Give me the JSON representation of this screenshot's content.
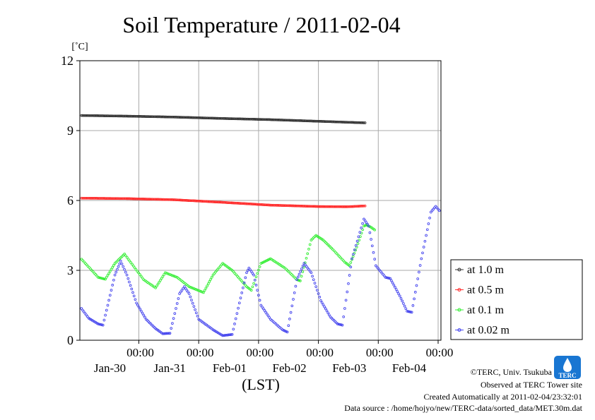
{
  "chart_data": {
    "type": "line",
    "title": "Soil Temperature / 2011-02-04",
    "ylabel": "[˚C]",
    "xlabel": "(LST)",
    "ylim": [
      0,
      12
    ],
    "yticks": [
      "0",
      "3",
      "6",
      "9",
      "12"
    ],
    "xlim_days": [
      0,
      6
    ],
    "xticks": [
      {
        "time": "00:00",
        "date": "Jan-30"
      },
      {
        "time": "00:00",
        "date": "Jan-31"
      },
      {
        "time": "00:00",
        "date": "Feb-01"
      },
      {
        "time": "00:00",
        "date": "Feb-02"
      },
      {
        "time": "00:00",
        "date": "Feb-03"
      },
      {
        "time": "00:00",
        "date": "Feb-04"
      }
    ],
    "grid": true,
    "legend_position": "right",
    "series": [
      {
        "name": "at 1.0 m",
        "color": "#333333",
        "points": [
          [
            0,
            9.65
          ],
          [
            1,
            9.62
          ],
          [
            2,
            9.58
          ],
          [
            3,
            9.52
          ],
          [
            4,
            9.47
          ],
          [
            5,
            9.4
          ],
          [
            6,
            9.33
          ]
        ]
      },
      {
        "name": "at 0.5 m",
        "color": "#ff2a2a",
        "points": [
          [
            0,
            6.1
          ],
          [
            1,
            6.08
          ],
          [
            2,
            6.03
          ],
          [
            3,
            5.92
          ],
          [
            4,
            5.8
          ],
          [
            5,
            5.74
          ],
          [
            5.6,
            5.73
          ],
          [
            6,
            5.77
          ]
        ]
      },
      {
        "name": "at 0.1 m",
        "color": "#33ee33",
        "points": [
          [
            0,
            3.6
          ],
          [
            0.4,
            2.7
          ],
          [
            0.55,
            2.62
          ],
          [
            0.75,
            3.3
          ],
          [
            0.95,
            3.7
          ],
          [
            1.35,
            2.6
          ],
          [
            1.6,
            2.25
          ],
          [
            1.8,
            2.9
          ],
          [
            2.05,
            2.7
          ],
          [
            2.3,
            2.3
          ],
          [
            2.6,
            2.05
          ],
          [
            2.8,
            2.8
          ],
          [
            3.0,
            3.3
          ],
          [
            3.2,
            3.0
          ],
          [
            3.5,
            2.3
          ],
          [
            3.6,
            2.15
          ],
          [
            3.8,
            3.3
          ],
          [
            4.0,
            3.5
          ],
          [
            4.3,
            3.1
          ],
          [
            4.55,
            2.6
          ],
          [
            4.62,
            2.55
          ],
          [
            4.85,
            4.3
          ],
          [
            4.95,
            4.5
          ],
          [
            5.1,
            4.3
          ],
          [
            5.3,
            3.9
          ],
          [
            5.55,
            3.35
          ],
          [
            5.65,
            3.2
          ],
          [
            5.8,
            4.0
          ],
          [
            5.95,
            4.9
          ],
          [
            6.0,
            4.95
          ],
          [
            6.1,
            4.85
          ],
          [
            6.2,
            4.7
          ]
        ]
      },
      {
        "name": "at 0.02 m",
        "color": "#4444ee",
        "points": [
          [
            0,
            1.5
          ],
          [
            0.2,
            0.95
          ],
          [
            0.4,
            0.7
          ],
          [
            0.5,
            0.65
          ],
          [
            0.6,
            1.5
          ],
          [
            0.75,
            2.8
          ],
          [
            0.87,
            3.4
          ],
          [
            1.0,
            2.8
          ],
          [
            1.2,
            1.6
          ],
          [
            1.4,
            0.9
          ],
          [
            1.6,
            0.5
          ],
          [
            1.75,
            0.28
          ],
          [
            1.9,
            0.3
          ],
          [
            2.1,
            2.0
          ],
          [
            2.2,
            2.3
          ],
          [
            2.3,
            2.0
          ],
          [
            2.5,
            0.9
          ],
          [
            2.8,
            0.45
          ],
          [
            3.0,
            0.2
          ],
          [
            3.2,
            0.25
          ],
          [
            3.35,
            1.6
          ],
          [
            3.5,
            2.9
          ],
          [
            3.55,
            3.1
          ],
          [
            3.65,
            2.8
          ],
          [
            3.8,
            1.5
          ],
          [
            4.0,
            0.9
          ],
          [
            4.25,
            0.45
          ],
          [
            4.35,
            0.35
          ],
          [
            4.55,
            2.6
          ],
          [
            4.7,
            3.3
          ],
          [
            4.85,
            2.9
          ],
          [
            5.05,
            1.7
          ],
          [
            5.25,
            1.0
          ],
          [
            5.4,
            0.7
          ],
          [
            5.5,
            0.65
          ],
          [
            5.7,
            3.5
          ],
          [
            5.95,
            5.2
          ],
          [
            6.05,
            4.9
          ],
          [
            6.2,
            3.2
          ],
          [
            6.4,
            2.7
          ],
          [
            6.5,
            2.65
          ],
          [
            6.7,
            1.9
          ],
          [
            6.85,
            1.25
          ],
          [
            6.95,
            1.2
          ],
          [
            7.15,
            3.5
          ],
          [
            7.35,
            5.5
          ],
          [
            7.45,
            5.75
          ],
          [
            7.55,
            5.5
          ],
          [
            7.75,
            4.0
          ],
          [
            7.9,
            3.4
          ]
        ]
      }
    ]
  },
  "logo": {
    "label": "TERC"
  },
  "credits": {
    "copyright": "©TERC, Univ. Tsukuba",
    "observed": "Observed at TERC Tower site",
    "created": "Created Automatically at 2011-02-04/23:32:01",
    "source": "Data source : /home/hojyo/new/TERC-data/sorted_data/MET.30m.dat"
  }
}
